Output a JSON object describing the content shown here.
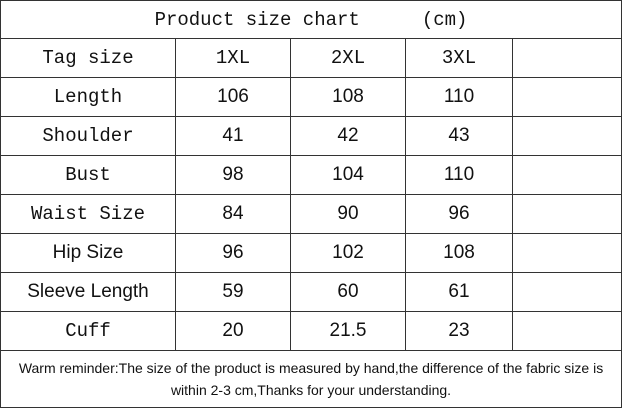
{
  "title": "Product size chart",
  "unit": "(cm)",
  "table": {
    "header": [
      "Tag size",
      "1XL",
      "2XL",
      "3XL"
    ],
    "rows": [
      [
        "Length",
        106,
        108,
        110
      ],
      [
        "Shoulder",
        41,
        42,
        43
      ],
      [
        "Bust",
        98,
        104,
        110
      ],
      [
        "Waist Size",
        84,
        90,
        96
      ],
      [
        "Hip Size",
        96,
        102,
        108
      ],
      [
        "Sleeve Length",
        59,
        60,
        61
      ],
      [
        "Cuff",
        20,
        21.5,
        23
      ]
    ]
  },
  "note": "Warm reminder:The size of the product is measured by hand,the difference of the fabric size is within 2-3 cm,Thanks for your understanding."
}
